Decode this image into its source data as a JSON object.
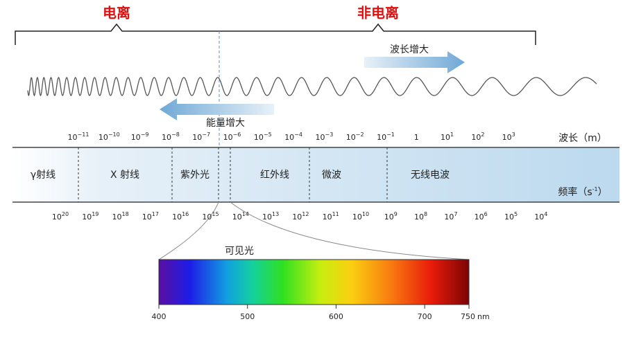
{
  "ionization": {
    "ionizing": "电离",
    "non_ionizing": "非电离"
  },
  "arrows": {
    "wavelength_increase": "波长增大",
    "energy_increase": "能量增大"
  },
  "wavelength_axis": {
    "label": "波长（m）",
    "ticks": [
      {
        "base": "10",
        "exp": "−11"
      },
      {
        "base": "10",
        "exp": "−10"
      },
      {
        "base": "10",
        "exp": "−9"
      },
      {
        "base": "10",
        "exp": "−8"
      },
      {
        "base": "10",
        "exp": "−7"
      },
      {
        "base": "10",
        "exp": "−6"
      },
      {
        "base": "10",
        "exp": "−5"
      },
      {
        "base": "10",
        "exp": "−4"
      },
      {
        "base": "10",
        "exp": "−3"
      },
      {
        "base": "10",
        "exp": "−2"
      },
      {
        "base": "10",
        "exp": "−1"
      },
      {
        "base": "1"
      },
      {
        "base": "10",
        "exp": "1"
      },
      {
        "base": "10",
        "exp": "2"
      },
      {
        "base": "10",
        "exp": "3"
      }
    ]
  },
  "regions": [
    "γ射线",
    "X 射线",
    "紫外光",
    "红外线",
    "微波",
    "无线电波"
  ],
  "frequency_axis": {
    "label": {
      "text": "频率（s",
      "sup": "-1",
      "close": "）"
    },
    "ticks": [
      {
        "base": "10",
        "exp": "20"
      },
      {
        "base": "10",
        "exp": "19"
      },
      {
        "base": "10",
        "exp": "18"
      },
      {
        "base": "10",
        "exp": "17"
      },
      {
        "base": "10",
        "exp": "16"
      },
      {
        "base": "10",
        "exp": "15"
      },
      {
        "base": "10",
        "exp": "14"
      },
      {
        "base": "10",
        "exp": "13"
      },
      {
        "base": "10",
        "exp": "12"
      },
      {
        "base": "10",
        "exp": "11"
      },
      {
        "base": "10",
        "exp": "10"
      },
      {
        "base": "10",
        "exp": "9"
      },
      {
        "base": "10",
        "exp": "8"
      },
      {
        "base": "10",
        "exp": "7"
      },
      {
        "base": "10",
        "exp": "6"
      },
      {
        "base": "10",
        "exp": "5"
      },
      {
        "base": "10",
        "exp": "4"
      }
    ]
  },
  "visible": {
    "label": "可见光",
    "ticks": [
      400,
      500,
      600,
      700,
      750
    ],
    "unit": "nm"
  }
}
